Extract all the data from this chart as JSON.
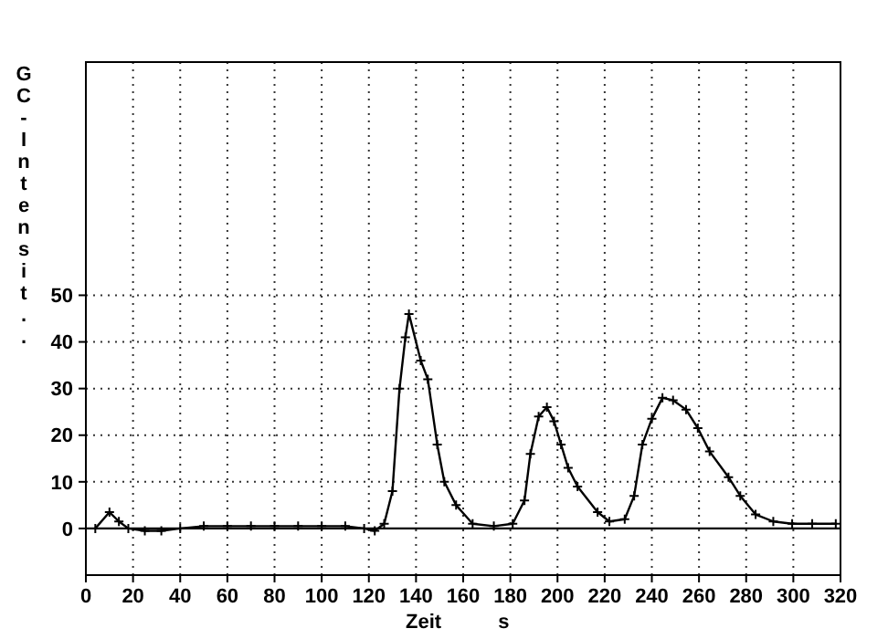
{
  "chart_data": {
    "type": "line",
    "xlabel": "Zeit s",
    "ylabel": "GC-Intensit..",
    "x": [
      4,
      10,
      14,
      18,
      25,
      32,
      40,
      50,
      60,
      70,
      80,
      90,
      100,
      110,
      118,
      122.5,
      126.5,
      130,
      133,
      135.5,
      137,
      142,
      145,
      149,
      152,
      157,
      164,
      173,
      181,
      186,
      188.5,
      192,
      195.5,
      198.5,
      201.5,
      204.5,
      208.5,
      217,
      222,
      228.5,
      232.5,
      236,
      240,
      244.5,
      249,
      254.5,
      259.5,
      264.5,
      272.5,
      277.5,
      284,
      291.5,
      299.5,
      308,
      318
    ],
    "series": [
      {
        "color": "#000000",
        "values": [
          0,
          3.5,
          1.5,
          0,
          -0.5,
          -0.5,
          0,
          0.5,
          0.5,
          0.5,
          0.5,
          0.5,
          0.5,
          0.5,
          0,
          -0.5,
          1,
          8,
          30,
          41,
          46,
          36,
          32,
          18,
          10,
          5,
          1,
          0.5,
          1,
          6,
          16,
          24,
          26,
          23,
          18,
          13,
          9,
          3.5,
          1.5,
          2,
          7,
          18,
          23.5,
          28,
          27.5,
          25.5,
          21.5,
          16.5,
          11,
          7,
          3,
          1.5,
          1,
          1,
          1
        ]
      }
    ],
    "xlim": [
      0,
      320
    ],
    "xticks": [
      0,
      20,
      40,
      60,
      80,
      100,
      120,
      140,
      160,
      180,
      200,
      220,
      240,
      260,
      280,
      300,
      320
    ],
    "ylim": [
      -10,
      100
    ],
    "yticks": [
      0,
      10,
      20,
      30,
      40,
      50
    ],
    "ref_lines": [
      {
        "axis": "y",
        "value": 0
      }
    ],
    "grid": true,
    "marker": "cross",
    "line_style": "solid"
  }
}
